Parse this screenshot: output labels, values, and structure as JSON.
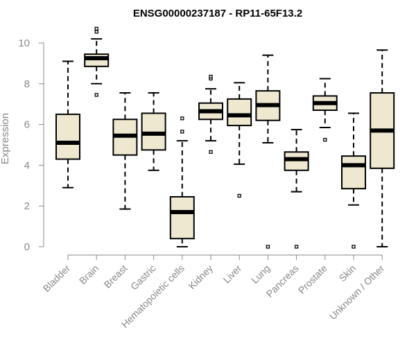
{
  "chart_data": {
    "type": "boxplot",
    "title": "ENSG00000237187 - RP11-65F13.2",
    "xlabel": "",
    "ylabel": "Expression",
    "ylim": [
      0,
      10
    ],
    "yticks": [
      0,
      2,
      4,
      6,
      8,
      10
    ],
    "grid": false,
    "categories": [
      "Bladder",
      "Brain",
      "Breast",
      "Gastric",
      "Hematopoietic cells",
      "Kidney",
      "Liver",
      "Lung",
      "Pancreas",
      "Prostate",
      "Skin",
      "Unknown / Other"
    ],
    "boxes": [
      {
        "category": "Bladder",
        "whisker_low": 2.9,
        "q1": 4.3,
        "median": 5.1,
        "q3": 6.5,
        "whisker_high": 9.1,
        "outliers": []
      },
      {
        "category": "Brain",
        "whisker_low": 8.0,
        "q1": 8.85,
        "median": 9.25,
        "q3": 9.45,
        "whisker_high": 10.2,
        "outliers": [
          7.45,
          10.55,
          10.7
        ]
      },
      {
        "category": "Breast",
        "whisker_low": 1.85,
        "q1": 4.5,
        "median": 5.45,
        "q3": 6.25,
        "whisker_high": 7.55,
        "outliers": []
      },
      {
        "category": "Gastric",
        "whisker_low": 3.75,
        "q1": 4.75,
        "median": 5.55,
        "q3": 6.55,
        "whisker_high": 7.55,
        "outliers": []
      },
      {
        "category": "Hematopoietic cells",
        "whisker_low": 0.0,
        "q1": 0.4,
        "median": 1.7,
        "q3": 2.45,
        "whisker_high": 5.2,
        "outliers": [
          5.65,
          6.3
        ]
      },
      {
        "category": "Kidney",
        "whisker_low": 5.2,
        "q1": 6.25,
        "median": 6.65,
        "q3": 7.05,
        "whisker_high": 7.75,
        "outliers": [
          4.65,
          8.25,
          8.35
        ]
      },
      {
        "category": "Liver",
        "whisker_low": 4.05,
        "q1": 5.95,
        "median": 6.45,
        "q3": 7.25,
        "whisker_high": 8.05,
        "outliers": [
          2.5
        ]
      },
      {
        "category": "Lung",
        "whisker_low": 5.1,
        "q1": 6.2,
        "median": 6.95,
        "q3": 7.65,
        "whisker_high": 9.4,
        "outliers": [
          0.0
        ]
      },
      {
        "category": "Pancreas",
        "whisker_low": 2.7,
        "q1": 3.75,
        "median": 4.3,
        "q3": 4.65,
        "whisker_high": 5.75,
        "outliers": [
          0.0
        ]
      },
      {
        "category": "Prostate",
        "whisker_low": 5.85,
        "q1": 6.7,
        "median": 7.05,
        "q3": 7.4,
        "whisker_high": 8.25,
        "outliers": [
          5.25
        ]
      },
      {
        "category": "Skin",
        "whisker_low": 2.05,
        "q1": 2.85,
        "median": 4.0,
        "q3": 4.45,
        "whisker_high": 6.55,
        "outliers": [
          0.0
        ]
      },
      {
        "category": "Unknown / Other",
        "whisker_low": 0.0,
        "q1": 3.85,
        "median": 5.7,
        "q3": 7.55,
        "whisker_high": 9.65,
        "outliers": []
      }
    ],
    "box_fill": "#eee8d0",
    "line_color": "#000000",
    "axis_color": "#888888"
  }
}
